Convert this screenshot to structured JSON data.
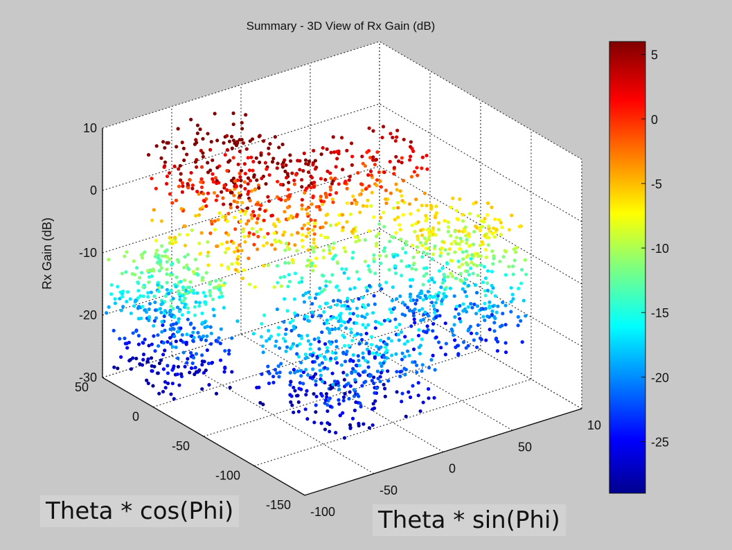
{
  "chart_data": {
    "type": "scatter",
    "title": "Summary - 3D View of Rx Gain (dB)",
    "zlabel": "Rx Gain (dB)",
    "xlabel": "",
    "ylabel": "",
    "x_ticks": [
      50,
      0,
      -50,
      -100,
      -150
    ],
    "y_ticks": [
      -100,
      -50,
      0,
      50,
      "10"
    ],
    "z_ticks": [
      10,
      0,
      -10,
      -20,
      -30
    ],
    "xlim": [
      -150,
      50
    ],
    "ylim": [
      -100,
      100
    ],
    "zlim": [
      -30,
      10
    ],
    "colorbar": {
      "colormap": "jet",
      "range": [
        -29,
        6
      ],
      "ticks": [
        5,
        0,
        -5,
        -10,
        -15,
        -20,
        -25
      ]
    },
    "grid": true,
    "view": "3D",
    "clusters": [
      {
        "name": "",
        "x_range": [
          -20,
          50
        ],
        "y_range": [
          -100,
          -50
        ],
        "z_range": [
          -29,
          -10
        ]
      },
      {
        "name": "",
        "x_range": [
          -60,
          40
        ],
        "y_range": [
          -80,
          -10
        ],
        "z_range": [
          -10,
          9
        ]
      },
      {
        "name": "",
        "x_range": [
          -50,
          0
        ],
        "y_range": [
          -20,
          70
        ],
        "z_range": [
          -25,
          5
        ]
      },
      {
        "name": "",
        "x_range": [
          -120,
          -40
        ],
        "y_range": [
          -60,
          20
        ],
        "z_range": [
          -29,
          -15
        ]
      },
      {
        "name": "",
        "x_range": [
          -100,
          -40
        ],
        "y_range": [
          40,
          100
        ],
        "z_range": [
          -25,
          -5
        ]
      }
    ]
  },
  "overlays": {
    "x_axis_annotation": "Theta * cos(Phi)",
    "y_axis_annotation": "Theta * sin(Phi)"
  }
}
